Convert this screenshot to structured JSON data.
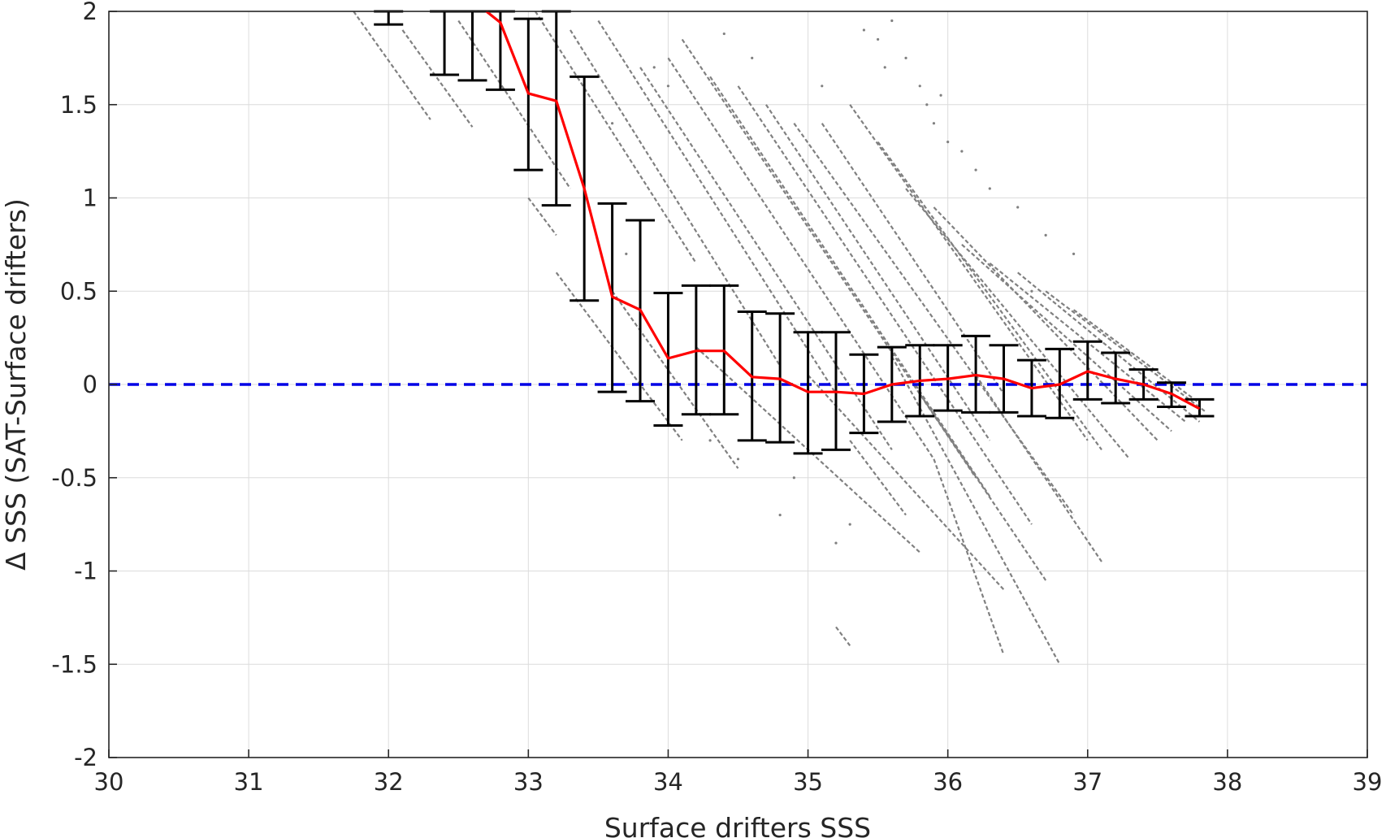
{
  "chart_data": {
    "type": "scatter",
    "title": "",
    "xlabel": "Surface drifters SSS",
    "ylabel": "Δ SSS (SAT-Surface drifters)",
    "xlim": [
      30,
      39
    ],
    "ylim": [
      -2,
      2
    ],
    "x_ticks": [
      30,
      31,
      32,
      33,
      34,
      35,
      36,
      37,
      38,
      39
    ],
    "x_tick_labels": [
      "30",
      "31",
      "32",
      "33",
      "34",
      "35",
      "36",
      "37",
      "38",
      "39"
    ],
    "y_ticks": [
      2,
      1.5,
      1,
      0.5,
      0,
      -0.5,
      -1,
      -1.5,
      -2
    ],
    "y_tick_labels": [
      "2",
      "1.5",
      "1",
      "0.5",
      "0",
      "-0.5",
      "-1",
      "-1.5",
      "-2"
    ],
    "grid": true,
    "legend": "none",
    "reference_line": {
      "y": 0,
      "color": "#0000e6",
      "style": "dashed"
    },
    "colors": {
      "scatter": "#808080",
      "mean_line": "#ff0000",
      "error_bars": "#000000"
    },
    "mean_line": {
      "x": [
        32.7,
        32.8,
        33.0,
        33.2,
        33.4,
        33.6,
        33.8,
        34.0,
        34.2,
        34.4,
        34.6,
        34.8,
        35.0,
        35.2,
        35.4,
        35.6,
        35.8,
        36.0,
        36.2,
        36.4,
        36.6,
        36.8,
        37.0,
        37.2,
        37.4,
        37.6,
        37.8
      ],
      "y": [
        2.0,
        1.94,
        1.56,
        1.52,
        1.05,
        0.47,
        0.4,
        0.14,
        0.18,
        0.18,
        0.04,
        0.03,
        -0.04,
        -0.04,
        -0.05,
        0.0,
        0.02,
        0.03,
        0.05,
        0.03,
        -0.02,
        0.0,
        0.07,
        0.03,
        0.0,
        -0.05,
        -0.13
      ]
    },
    "error_bars": [
      {
        "x": 32.0,
        "low": 1.93,
        "high": 2.0
      },
      {
        "x": 32.4,
        "low": 1.66,
        "high": 2.0
      },
      {
        "x": 32.6,
        "low": 1.63,
        "high": 2.0
      },
      {
        "x": 32.8,
        "low": 1.58,
        "high": 2.0
      },
      {
        "x": 33.0,
        "low": 1.15,
        "high": 1.96
      },
      {
        "x": 33.2,
        "low": 0.96,
        "high": 2.0
      },
      {
        "x": 33.4,
        "low": 0.45,
        "high": 1.65
      },
      {
        "x": 33.6,
        "low": -0.04,
        "high": 0.97
      },
      {
        "x": 33.8,
        "low": -0.09,
        "high": 0.88
      },
      {
        "x": 34.0,
        "low": -0.22,
        "high": 0.49
      },
      {
        "x": 34.2,
        "low": -0.16,
        "high": 0.53
      },
      {
        "x": 34.4,
        "low": -0.16,
        "high": 0.53
      },
      {
        "x": 34.6,
        "low": -0.3,
        "high": 0.39
      },
      {
        "x": 34.8,
        "low": -0.31,
        "high": 0.38
      },
      {
        "x": 35.0,
        "low": -0.37,
        "high": 0.28
      },
      {
        "x": 35.2,
        "low": -0.35,
        "high": 0.28
      },
      {
        "x": 35.4,
        "low": -0.26,
        "high": 0.16
      },
      {
        "x": 35.6,
        "low": -0.2,
        "high": 0.2
      },
      {
        "x": 35.8,
        "low": -0.17,
        "high": 0.21
      },
      {
        "x": 36.0,
        "low": -0.14,
        "high": 0.21
      },
      {
        "x": 36.2,
        "low": -0.15,
        "high": 0.26
      },
      {
        "x": 36.4,
        "low": -0.15,
        "high": 0.21
      },
      {
        "x": 36.6,
        "low": -0.17,
        "high": 0.13
      },
      {
        "x": 36.8,
        "low": -0.18,
        "high": 0.19
      },
      {
        "x": 37.0,
        "low": -0.08,
        "high": 0.23
      },
      {
        "x": 37.2,
        "low": -0.1,
        "high": 0.17
      },
      {
        "x": 37.4,
        "low": -0.08,
        "high": 0.08
      },
      {
        "x": 37.6,
        "low": -0.12,
        "high": 0.01
      },
      {
        "x": 37.8,
        "low": -0.17,
        "high": -0.08
      }
    ],
    "scatter_segments": [
      {
        "x1": 31.75,
        "y1": 2.0,
        "x2": 32.3,
        "y2": 1.42
      },
      {
        "x1": 32.1,
        "y1": 1.9,
        "x2": 32.6,
        "y2": 1.38
      },
      {
        "x1": 32.5,
        "y1": 1.95,
        "x2": 33.3,
        "y2": 1.05
      },
      {
        "x1": 33.0,
        "y1": 1.0,
        "x2": 33.2,
        "y2": 0.8
      },
      {
        "x1": 33.05,
        "y1": 2.0,
        "x2": 34.2,
        "y2": 0.65
      },
      {
        "x1": 33.3,
        "y1": 1.9,
        "x2": 34.8,
        "y2": 0.1
      },
      {
        "x1": 33.5,
        "y1": 1.95,
        "x2": 35.2,
        "y2": -0.05
      },
      {
        "x1": 33.6,
        "y1": 0.5,
        "x2": 34.5,
        "y2": -0.45
      },
      {
        "x1": 33.2,
        "y1": 0.6,
        "x2": 34.1,
        "y2": -0.3
      },
      {
        "x1": 33.8,
        "y1": 1.7,
        "x2": 35.6,
        "y2": -0.35
      },
      {
        "x1": 34.0,
        "y1": 1.75,
        "x2": 35.9,
        "y2": -0.4
      },
      {
        "x1": 34.1,
        "y1": 1.85,
        "x2": 36.2,
        "y2": -0.5
      },
      {
        "x1": 34.3,
        "y1": 1.65,
        "x2": 36.3,
        "y2": -0.6
      },
      {
        "x1": 34.5,
        "y1": 1.6,
        "x2": 36.6,
        "y2": -0.75
      },
      {
        "x1": 34.7,
        "y1": 1.5,
        "x2": 36.3,
        "y2": -0.3
      },
      {
        "x1": 34.9,
        "y1": 1.4,
        "x2": 36.9,
        "y2": -0.7
      },
      {
        "x1": 35.1,
        "y1": 1.4,
        "x2": 36.4,
        "y2": -0.05
      },
      {
        "x1": 35.3,
        "y1": 1.5,
        "x2": 37.0,
        "y2": -0.3
      },
      {
        "x1": 35.5,
        "y1": 1.3,
        "x2": 37.1,
        "y2": -0.35
      },
      {
        "x1": 35.7,
        "y1": 1.05,
        "x2": 37.3,
        "y2": -0.4
      },
      {
        "x1": 35.9,
        "y1": 0.95,
        "x2": 37.5,
        "y2": -0.3
      },
      {
        "x1": 36.1,
        "y1": 0.75,
        "x2": 37.6,
        "y2": -0.25
      },
      {
        "x1": 36.3,
        "y1": 0.65,
        "x2": 37.7,
        "y2": -0.2
      },
      {
        "x1": 36.5,
        "y1": 0.6,
        "x2": 37.8,
        "y2": -0.2
      },
      {
        "x1": 36.7,
        "y1": 0.5,
        "x2": 37.85,
        "y2": -0.15
      },
      {
        "x1": 36.9,
        "y1": 0.4,
        "x2": 37.8,
        "y2": -0.1
      },
      {
        "x1": 34.2,
        "y1": 0.2,
        "x2": 35.8,
        "y2": -0.9
      },
      {
        "x1": 35.0,
        "y1": 0.05,
        "x2": 36.4,
        "y2": -1.1
      },
      {
        "x1": 35.6,
        "y1": 0.15,
        "x2": 36.8,
        "y2": -1.5
      },
      {
        "x1": 35.9,
        "y1": -0.4,
        "x2": 36.4,
        "y2": -1.45
      },
      {
        "x1": 35.3,
        "y1": -0.3,
        "x2": 35.7,
        "y2": -0.7
      },
      {
        "x1": 36.2,
        "y1": 0.05,
        "x2": 37.1,
        "y2": -0.95
      },
      {
        "x1": 35.8,
        "y1": -0.05,
        "x2": 36.7,
        "y2": -1.05
      },
      {
        "x1": 35.2,
        "y1": -1.3,
        "x2": 35.3,
        "y2": -1.4
      }
    ],
    "scatter_points": [
      {
        "x": 35.4,
        "y": 1.9
      },
      {
        "x": 35.5,
        "y": 1.85
      },
      {
        "x": 35.55,
        "y": 1.7
      },
      {
        "x": 35.8,
        "y": 1.6
      },
      {
        "x": 35.85,
        "y": 1.5
      },
      {
        "x": 35.9,
        "y": 1.4
      },
      {
        "x": 35.95,
        "y": 1.55
      },
      {
        "x": 36.0,
        "y": 1.3
      },
      {
        "x": 36.1,
        "y": 1.25
      },
      {
        "x": 35.7,
        "y": 1.75
      },
      {
        "x": 35.6,
        "y": 1.95
      },
      {
        "x": 36.3,
        "y": 1.05
      },
      {
        "x": 36.5,
        "y": 0.95
      },
      {
        "x": 36.7,
        "y": 0.8
      },
      {
        "x": 36.9,
        "y": 0.7
      },
      {
        "x": 34.4,
        "y": 1.88
      },
      {
        "x": 33.9,
        "y": 1.7
      },
      {
        "x": 34.6,
        "y": 1.75
      },
      {
        "x": 33.6,
        "y": 1.4
      },
      {
        "x": 34.8,
        "y": -0.7
      },
      {
        "x": 35.2,
        "y": -0.85
      },
      {
        "x": 34.3,
        "y": -0.3
      },
      {
        "x": 34.5,
        "y": -0.4
      },
      {
        "x": 33.7,
        "y": 0.7
      },
      {
        "x": 34.9,
        "y": -0.5
      },
      {
        "x": 35.3,
        "y": -0.75
      },
      {
        "x": 36.6,
        "y": 0.5
      },
      {
        "x": 36.2,
        "y": 1.15
      },
      {
        "x": 35.1,
        "y": 1.6
      },
      {
        "x": 34.0,
        "y": 1.6
      }
    ]
  }
}
